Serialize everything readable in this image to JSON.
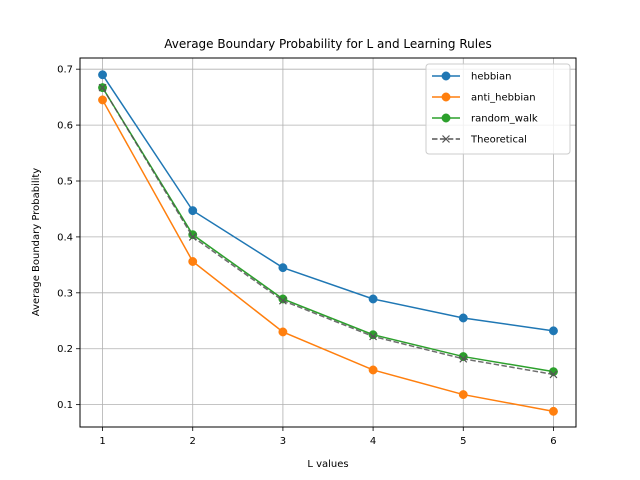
{
  "chart_data": {
    "type": "line",
    "title": "Average Boundary Probability for L and Learning Rules",
    "xlabel": "L values",
    "ylabel": "Average Boundary Probability",
    "x": [
      1,
      2,
      3,
      4,
      5,
      6
    ],
    "xlim": [
      0.75,
      6.25
    ],
    "ylim": [
      0.06,
      0.72
    ],
    "xticks": [
      "1",
      "2",
      "3",
      "4",
      "5",
      "6"
    ],
    "yticks": [
      "0.1",
      "0.2",
      "0.3",
      "0.4",
      "0.5",
      "0.6",
      "0.7"
    ],
    "grid": true,
    "legend_position": "top-right",
    "series": [
      {
        "name": "hebbian",
        "values": [
          0.69,
          0.447,
          0.345,
          0.289,
          0.255,
          0.232
        ],
        "color": "#1f77b4",
        "marker": "circle",
        "linestyle": "solid"
      },
      {
        "name": "anti_hebbian",
        "values": [
          0.645,
          0.356,
          0.23,
          0.162,
          0.118,
          0.088
        ],
        "color": "#ff7f0e",
        "marker": "circle",
        "linestyle": "solid"
      },
      {
        "name": "random_walk",
        "values": [
          0.667,
          0.404,
          0.289,
          0.225,
          0.186,
          0.159
        ],
        "color": "#2ca02c",
        "marker": "circle",
        "linestyle": "solid"
      },
      {
        "name": "Theoretical",
        "values": [
          0.667,
          0.4,
          0.286,
          0.222,
          0.182,
          0.154
        ],
        "color": "#555555",
        "marker": "x",
        "linestyle": "dashed"
      }
    ]
  }
}
